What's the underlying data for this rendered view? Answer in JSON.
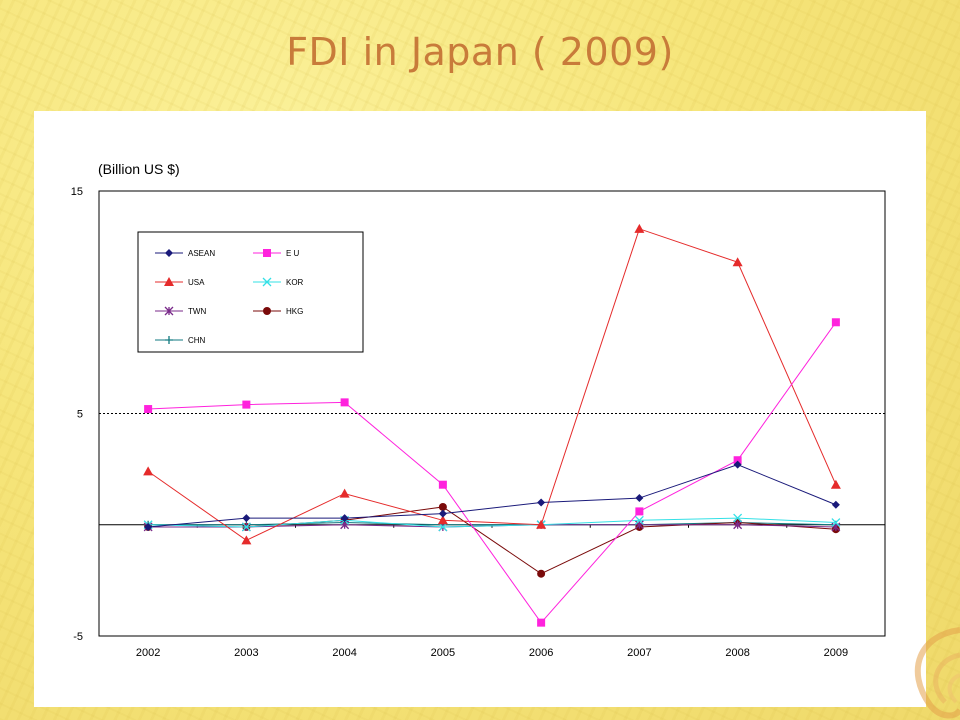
{
  "slide": {
    "title": "FDI in Japan ( 2009)"
  },
  "chart_data": {
    "type": "line",
    "title": "",
    "xlabel": "",
    "ylabel": "(Billion US $)",
    "ylim": [
      -5,
      15
    ],
    "yticks": [
      -5,
      5,
      15
    ],
    "reference_lines": [
      0,
      5
    ],
    "grid": false,
    "legend": {
      "placement": "top-left inside",
      "columns": 2
    },
    "categories": [
      "2002",
      "2003",
      "2004",
      "2005",
      "2006",
      "2007",
      "2008",
      "2009"
    ],
    "series": [
      {
        "name": "ASEAN",
        "color": "#1a1a7a",
        "marker": "diamond",
        "values": [
          -0.1,
          0.3,
          0.3,
          0.5,
          1.0,
          1.2,
          2.7,
          0.9
        ]
      },
      {
        "name": "E U",
        "color": "#ff22dd",
        "marker": "square",
        "values": [
          5.2,
          5.4,
          5.5,
          1.8,
          -4.4,
          0.6,
          2.9,
          9.1
        ]
      },
      {
        "name": "USA",
        "color": "#e52b2b",
        "marker": "triangle",
        "values": [
          2.4,
          -0.7,
          1.4,
          0.2,
          0.0,
          13.3,
          11.8,
          1.8
        ]
      },
      {
        "name": "KOR",
        "color": "#33e0e6",
        "marker": "x",
        "values": [
          0.0,
          -0.1,
          0.2,
          -0.1,
          0.0,
          0.2,
          0.3,
          0.1
        ]
      },
      {
        "name": "TWN",
        "color": "#7a2a8a",
        "marker": "asterisk",
        "values": [
          -0.1,
          -0.1,
          0.0,
          -0.1,
          0.0,
          0.0,
          0.0,
          -0.1
        ]
      },
      {
        "name": "HKG",
        "color": "#7a0a0a",
        "marker": "circle",
        "values": [
          -0.1,
          -0.1,
          0.2,
          0.8,
          -2.2,
          -0.1,
          0.1,
          -0.2
        ]
      },
      {
        "name": "CHN",
        "color": "#127a80",
        "marker": "plus",
        "values": [
          0.0,
          0.0,
          0.1,
          0.0,
          0.0,
          0.0,
          0.1,
          0.0
        ]
      }
    ]
  }
}
